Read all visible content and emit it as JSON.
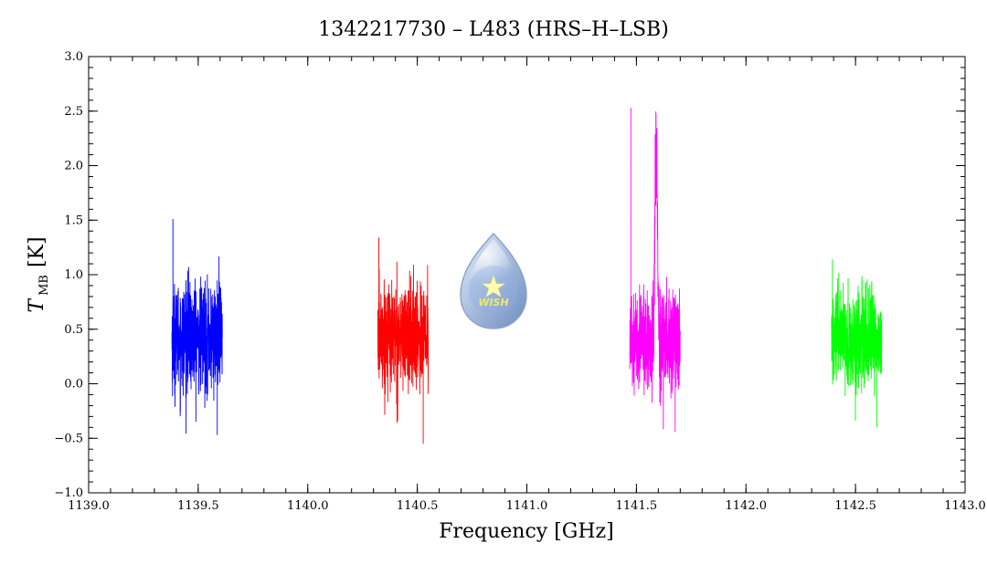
{
  "chart_data": {
    "type": "line",
    "title": "1342217730 – L483 (HRS–H–LSB)",
    "xlabel": "Frequency [GHz]",
    "ylabel_main": "T",
    "ylabel_sub": "MB",
    "ylabel_unit": "[K]",
    "xlim": [
      1139.0,
      1143.0
    ],
    "ylim": [
      -1.0,
      3.0
    ],
    "x_ticks": [
      {
        "value": 1139.0,
        "label": "1139.0"
      },
      {
        "value": 1139.5,
        "label": "1139.5"
      },
      {
        "value": 1140.0,
        "label": "1140.0"
      },
      {
        "value": 1140.5,
        "label": "1140.5"
      },
      {
        "value": 1141.0,
        "label": "1141.0"
      },
      {
        "value": 1141.5,
        "label": "1141.5"
      },
      {
        "value": 1142.0,
        "label": "1142.0"
      },
      {
        "value": 1142.5,
        "label": "1142.5"
      },
      {
        "value": 1143.0,
        "label": "1143.0"
      }
    ],
    "y_ticks": [
      {
        "value": -1.0,
        "label": "−1.0"
      },
      {
        "value": -0.5,
        "label": "−0.5"
      },
      {
        "value": 0.0,
        "label": "0.0"
      },
      {
        "value": 0.5,
        "label": "0.5"
      },
      {
        "value": 1.0,
        "label": "1.0"
      },
      {
        "value": 1.5,
        "label": "1.5"
      },
      {
        "value": 2.0,
        "label": "2.0"
      },
      {
        "value": 2.5,
        "label": "2.5"
      },
      {
        "value": 3.0,
        "label": "3.0"
      }
    ],
    "grid": false,
    "series": [
      {
        "color": "#0000ff",
        "x_range": [
          1139.38,
          1139.61
        ],
        "baseline": 0.42,
        "noise_sigma": 0.25,
        "min": -0.47,
        "max": 1.51,
        "line_peak": null
      },
      {
        "color": "#ff0000",
        "x_range": [
          1140.32,
          1140.55
        ],
        "baseline": 0.44,
        "noise_sigma": 0.24,
        "min": -0.55,
        "max": 1.34,
        "line_peak": null
      },
      {
        "color": "#ff00ff",
        "x_range": [
          1141.47,
          1141.7
        ],
        "baseline": 0.4,
        "noise_sigma": 0.23,
        "min": -0.44,
        "max": 2.53,
        "line_peak": {
          "x": 1141.59,
          "y": 2.53,
          "width": 0.008
        }
      },
      {
        "color": "#00ff00",
        "x_range": [
          1142.39,
          1142.62
        ],
        "baseline": 0.4,
        "noise_sigma": 0.22,
        "min": -0.4,
        "max": 1.14,
        "line_peak": null
      }
    ]
  },
  "logo": {
    "text": "WISH"
  }
}
